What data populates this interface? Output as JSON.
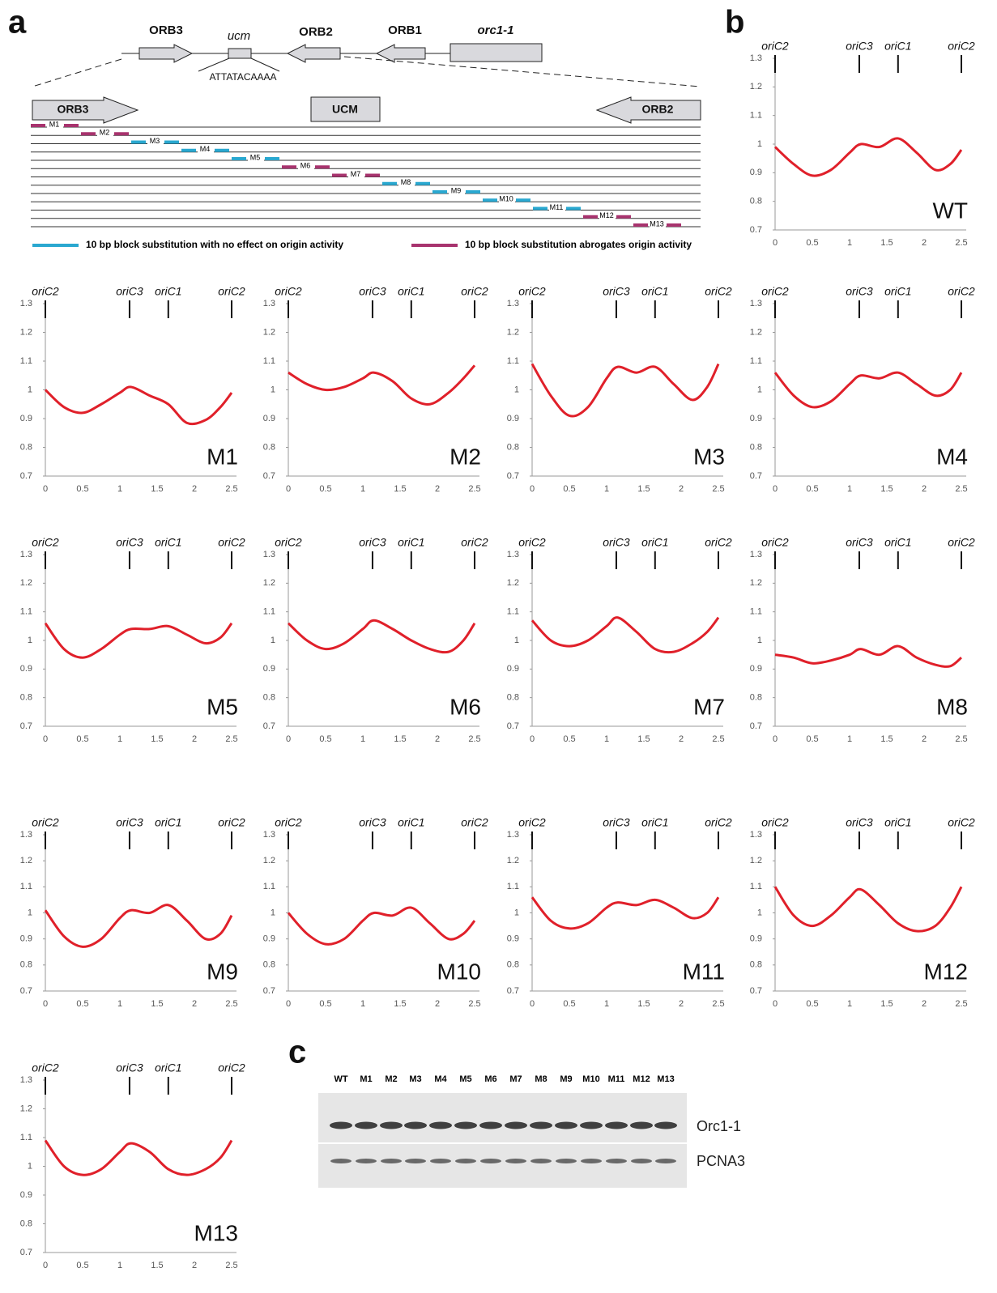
{
  "panel_labels": [
    "a",
    "b",
    "c"
  ],
  "diagram": {
    "genes": [
      "ORB3",
      "ucm",
      "ORB2",
      "ORB1",
      "orc1-1"
    ],
    "motif": "ATTATACAAAA",
    "zoom_labels": [
      "ORB3",
      "UCM",
      "ORB2"
    ],
    "blocks": [
      {
        "label": "M1",
        "color": "#a8336e"
      },
      {
        "label": "M2",
        "color": "#a8336e"
      },
      {
        "label": "M3",
        "color": "#2aa8d0"
      },
      {
        "label": "M4",
        "color": "#2aa8d0"
      },
      {
        "label": "M5",
        "color": "#2aa8d0"
      },
      {
        "label": "M6",
        "color": "#a8336e"
      },
      {
        "label": "M7",
        "color": "#a8336e"
      },
      {
        "label": "M8",
        "color": "#2aa8d0"
      },
      {
        "label": "M9",
        "color": "#2aa8d0"
      },
      {
        "label": "M10",
        "color": "#2aa8d0"
      },
      {
        "label": "M11",
        "color": "#2aa8d0"
      },
      {
        "label": "M12",
        "color": "#a8336e"
      },
      {
        "label": "M13",
        "color": "#a8336e"
      }
    ],
    "legend": [
      {
        "label": "10 bp block substitution with no effect on origin activity",
        "color": "#2aa8d0"
      },
      {
        "label": "10 bp block substitution abrogates origin activity",
        "color": "#a8336e"
      }
    ]
  },
  "chart_data": [
    {
      "type": "line",
      "title": "WT",
      "x": [
        0,
        0.25,
        0.5,
        0.75,
        1,
        1.15,
        1.4,
        1.65,
        1.9,
        2.15,
        2.35,
        2.5
      ],
      "series": [
        {
          "color": "#e0202a",
          "values": [
            0.99,
            0.93,
            0.89,
            0.91,
            0.97,
            1.0,
            0.99,
            1.02,
            0.97,
            0.91,
            0.93,
            0.98
          ]
        }
      ],
      "xlim": [
        0,
        2.5
      ],
      "ylim": [
        0.7,
        1.3
      ],
      "xticks": [
        0,
        0.5,
        1,
        1.5,
        2,
        2.5
      ],
      "yticks": [
        0.7,
        0.8,
        0.9,
        1,
        1.1,
        1.2,
        1.3
      ],
      "origins": [
        {
          "label": "oriC2",
          "value": 0
        },
        {
          "label": "oriC3",
          "value": 1.13
        },
        {
          "label": "oriC1",
          "value": 1.65
        },
        {
          "label": "oriC2",
          "value": 2.5
        }
      ]
    },
    {
      "type": "line",
      "title": "M1",
      "x": [
        0,
        0.25,
        0.5,
        0.75,
        1,
        1.15,
        1.4,
        1.65,
        1.9,
        2.15,
        2.35,
        2.5
      ],
      "series": [
        {
          "color": "#e0202a",
          "values": [
            1.0,
            0.94,
            0.92,
            0.95,
            0.99,
            1.01,
            0.98,
            0.95,
            0.885,
            0.895,
            0.94,
            0.99
          ]
        }
      ],
      "xlim": [
        0,
        2.5
      ],
      "ylim": [
        0.7,
        1.3
      ],
      "xticks": [
        0,
        0.5,
        1,
        1.5,
        2,
        2.5
      ],
      "yticks": [
        0.7,
        0.8,
        0.9,
        1,
        1.1,
        1.2,
        1.3
      ],
      "origins": [
        {
          "label": "oriC2",
          "value": 0
        },
        {
          "label": "oriC3",
          "value": 1.13
        },
        {
          "label": "oriC1",
          "value": 1.65
        },
        {
          "label": "oriC2",
          "value": 2.5
        }
      ]
    },
    {
      "type": "line",
      "title": "M2",
      "x": [
        0,
        0.25,
        0.5,
        0.75,
        1,
        1.15,
        1.4,
        1.65,
        1.9,
        2.15,
        2.35,
        2.5
      ],
      "series": [
        {
          "color": "#e0202a",
          "values": [
            1.06,
            1.02,
            1.0,
            1.01,
            1.04,
            1.06,
            1.03,
            0.97,
            0.95,
            0.99,
            1.04,
            1.085
          ]
        }
      ],
      "xlim": [
        0,
        2.5
      ],
      "ylim": [
        0.7,
        1.3
      ],
      "xticks": [
        0,
        0.5,
        1,
        1.5,
        2,
        2.5
      ],
      "yticks": [
        0.7,
        0.8,
        0.9,
        1,
        1.1,
        1.2,
        1.3
      ],
      "origins": [
        {
          "label": "oriC2",
          "value": 0
        },
        {
          "label": "oriC3",
          "value": 1.13
        },
        {
          "label": "oriC1",
          "value": 1.65
        },
        {
          "label": "oriC2",
          "value": 2.5
        }
      ]
    },
    {
      "type": "line",
      "title": "M3",
      "x": [
        0,
        0.25,
        0.5,
        0.75,
        1,
        1.15,
        1.4,
        1.65,
        1.9,
        2.15,
        2.35,
        2.5
      ],
      "series": [
        {
          "color": "#e0202a",
          "values": [
            1.09,
            0.98,
            0.91,
            0.94,
            1.04,
            1.08,
            1.06,
            1.08,
            1.02,
            0.965,
            1.01,
            1.09
          ]
        }
      ],
      "xlim": [
        0,
        2.5
      ],
      "ylim": [
        0.7,
        1.3
      ],
      "xticks": [
        0,
        0.5,
        1,
        1.5,
        2,
        2.5
      ],
      "yticks": [
        0.7,
        0.8,
        0.9,
        1,
        1.1,
        1.2,
        1.3
      ],
      "origins": [
        {
          "label": "oriC2",
          "value": 0
        },
        {
          "label": "oriC3",
          "value": 1.13
        },
        {
          "label": "oriC1",
          "value": 1.65
        },
        {
          "label": "oriC2",
          "value": 2.5
        }
      ]
    },
    {
      "type": "line",
      "title": "M4",
      "x": [
        0,
        0.25,
        0.5,
        0.75,
        1,
        1.15,
        1.4,
        1.65,
        1.9,
        2.15,
        2.35,
        2.5
      ],
      "series": [
        {
          "color": "#e0202a",
          "values": [
            1.06,
            0.98,
            0.94,
            0.96,
            1.02,
            1.05,
            1.04,
            1.06,
            1.02,
            0.98,
            1.0,
            1.06
          ]
        }
      ],
      "xlim": [
        0,
        2.5
      ],
      "ylim": [
        0.7,
        1.3
      ],
      "xticks": [
        0,
        0.5,
        1,
        1.5,
        2,
        2.5
      ],
      "yticks": [
        0.7,
        0.8,
        0.9,
        1,
        1.1,
        1.2,
        1.3
      ],
      "origins": [
        {
          "label": "oriC2",
          "value": 0
        },
        {
          "label": "oriC3",
          "value": 1.13
        },
        {
          "label": "oriC1",
          "value": 1.65
        },
        {
          "label": "oriC2",
          "value": 2.5
        }
      ]
    },
    {
      "type": "line",
      "title": "M5",
      "x": [
        0,
        0.25,
        0.5,
        0.75,
        1,
        1.15,
        1.4,
        1.65,
        1.9,
        2.15,
        2.35,
        2.5
      ],
      "series": [
        {
          "color": "#e0202a",
          "values": [
            1.06,
            0.97,
            0.94,
            0.97,
            1.02,
            1.04,
            1.04,
            1.05,
            1.02,
            0.99,
            1.01,
            1.06
          ]
        }
      ],
      "xlim": [
        0,
        2.5
      ],
      "ylim": [
        0.7,
        1.3
      ],
      "xticks": [
        0,
        0.5,
        1,
        1.5,
        2,
        2.5
      ],
      "yticks": [
        0.7,
        0.8,
        0.9,
        1,
        1.1,
        1.2,
        1.3
      ],
      "origins": [
        {
          "label": "oriC2",
          "value": 0
        },
        {
          "label": "oriC3",
          "value": 1.13
        },
        {
          "label": "oriC1",
          "value": 1.65
        },
        {
          "label": "oriC2",
          "value": 2.5
        }
      ]
    },
    {
      "type": "line",
      "title": "M6",
      "x": [
        0,
        0.25,
        0.5,
        0.75,
        1,
        1.15,
        1.4,
        1.65,
        1.9,
        2.15,
        2.35,
        2.5
      ],
      "series": [
        {
          "color": "#e0202a",
          "values": [
            1.06,
            1.0,
            0.97,
            0.99,
            1.04,
            1.07,
            1.04,
            1.0,
            0.97,
            0.96,
            1.0,
            1.06
          ]
        }
      ],
      "xlim": [
        0,
        2.5
      ],
      "ylim": [
        0.7,
        1.3
      ],
      "xticks": [
        0,
        0.5,
        1,
        1.5,
        2,
        2.5
      ],
      "yticks": [
        0.7,
        0.8,
        0.9,
        1,
        1.1,
        1.2,
        1.3
      ],
      "origins": [
        {
          "label": "oriC2",
          "value": 0
        },
        {
          "label": "oriC3",
          "value": 1.13
        },
        {
          "label": "oriC1",
          "value": 1.65
        },
        {
          "label": "oriC2",
          "value": 2.5
        }
      ]
    },
    {
      "type": "line",
      "title": "M7",
      "x": [
        0,
        0.25,
        0.5,
        0.75,
        1,
        1.15,
        1.4,
        1.65,
        1.9,
        2.15,
        2.35,
        2.5
      ],
      "series": [
        {
          "color": "#e0202a",
          "values": [
            1.07,
            1.0,
            0.98,
            1.0,
            1.05,
            1.08,
            1.03,
            0.97,
            0.96,
            0.99,
            1.03,
            1.08
          ]
        }
      ],
      "xlim": [
        0,
        2.5
      ],
      "ylim": [
        0.7,
        1.3
      ],
      "xticks": [
        0,
        0.5,
        1,
        1.5,
        2,
        2.5
      ],
      "yticks": [
        0.7,
        0.8,
        0.9,
        1,
        1.1,
        1.2,
        1.3
      ],
      "origins": [
        {
          "label": "oriC2",
          "value": 0
        },
        {
          "label": "oriC3",
          "value": 1.13
        },
        {
          "label": "oriC1",
          "value": 1.65
        },
        {
          "label": "oriC2",
          "value": 2.5
        }
      ]
    },
    {
      "type": "line",
      "title": "M8",
      "x": [
        0,
        0.25,
        0.5,
        0.75,
        1,
        1.15,
        1.4,
        1.65,
        1.9,
        2.15,
        2.35,
        2.5
      ],
      "series": [
        {
          "color": "#e0202a",
          "values": [
            0.95,
            0.94,
            0.92,
            0.93,
            0.95,
            0.97,
            0.95,
            0.98,
            0.94,
            0.915,
            0.91,
            0.94
          ]
        }
      ],
      "xlim": [
        0,
        2.5
      ],
      "ylim": [
        0.7,
        1.3
      ],
      "xticks": [
        0,
        0.5,
        1,
        1.5,
        2,
        2.5
      ],
      "yticks": [
        0.7,
        0.8,
        0.9,
        1,
        1.1,
        1.2,
        1.3
      ],
      "origins": [
        {
          "label": "oriC2",
          "value": 0
        },
        {
          "label": "oriC3",
          "value": 1.13
        },
        {
          "label": "oriC1",
          "value": 1.65
        },
        {
          "label": "oriC2",
          "value": 2.5
        }
      ]
    },
    {
      "type": "line",
      "title": "M9",
      "x": [
        0,
        0.25,
        0.5,
        0.75,
        1,
        1.15,
        1.4,
        1.65,
        1.9,
        2.15,
        2.35,
        2.5
      ],
      "series": [
        {
          "color": "#e0202a",
          "values": [
            1.01,
            0.91,
            0.87,
            0.9,
            0.98,
            1.01,
            1.0,
            1.03,
            0.97,
            0.9,
            0.92,
            0.99
          ]
        }
      ],
      "xlim": [
        0,
        2.5
      ],
      "ylim": [
        0.7,
        1.3
      ],
      "xticks": [
        0,
        0.5,
        1,
        1.5,
        2,
        2.5
      ],
      "yticks": [
        0.7,
        0.8,
        0.9,
        1,
        1.1,
        1.2,
        1.3
      ],
      "origins": [
        {
          "label": "oriC2",
          "value": 0
        },
        {
          "label": "oriC3",
          "value": 1.13
        },
        {
          "label": "oriC1",
          "value": 1.65
        },
        {
          "label": "oriC2",
          "value": 2.5
        }
      ]
    },
    {
      "type": "line",
      "title": "M10",
      "x": [
        0,
        0.25,
        0.5,
        0.75,
        1,
        1.15,
        1.4,
        1.65,
        1.9,
        2.15,
        2.35,
        2.5
      ],
      "series": [
        {
          "color": "#e0202a",
          "values": [
            1.0,
            0.92,
            0.88,
            0.9,
            0.97,
            1.0,
            0.99,
            1.02,
            0.96,
            0.9,
            0.92,
            0.97
          ]
        }
      ],
      "xlim": [
        0,
        2.5
      ],
      "ylim": [
        0.7,
        1.3
      ],
      "xticks": [
        0,
        0.5,
        1,
        1.5,
        2,
        2.5
      ],
      "yticks": [
        0.7,
        0.8,
        0.9,
        1,
        1.1,
        1.2,
        1.3
      ],
      "origins": [
        {
          "label": "oriC2",
          "value": 0
        },
        {
          "label": "oriC3",
          "value": 1.13
        },
        {
          "label": "oriC1",
          "value": 1.65
        },
        {
          "label": "oriC2",
          "value": 2.5
        }
      ]
    },
    {
      "type": "line",
      "title": "M11",
      "x": [
        0,
        0.25,
        0.5,
        0.75,
        1,
        1.15,
        1.4,
        1.65,
        1.9,
        2.15,
        2.35,
        2.5
      ],
      "series": [
        {
          "color": "#e0202a",
          "values": [
            1.06,
            0.97,
            0.94,
            0.96,
            1.02,
            1.04,
            1.03,
            1.05,
            1.02,
            0.98,
            1.0,
            1.06
          ]
        }
      ],
      "xlim": [
        0,
        2.5
      ],
      "ylim": [
        0.7,
        1.3
      ],
      "xticks": [
        0,
        0.5,
        1,
        1.5,
        2,
        2.5
      ],
      "yticks": [
        0.7,
        0.8,
        0.9,
        1,
        1.1,
        1.2,
        1.3
      ],
      "origins": [
        {
          "label": "oriC2",
          "value": 0
        },
        {
          "label": "oriC3",
          "value": 1.13
        },
        {
          "label": "oriC1",
          "value": 1.65
        },
        {
          "label": "oriC2",
          "value": 2.5
        }
      ]
    },
    {
      "type": "line",
      "title": "M12",
      "x": [
        0,
        0.25,
        0.5,
        0.75,
        1,
        1.15,
        1.4,
        1.65,
        1.9,
        2.15,
        2.35,
        2.5
      ],
      "series": [
        {
          "color": "#e0202a",
          "values": [
            1.1,
            0.99,
            0.95,
            0.99,
            1.06,
            1.09,
            1.03,
            0.96,
            0.93,
            0.95,
            1.02,
            1.1
          ]
        }
      ],
      "xlim": [
        0,
        2.5
      ],
      "ylim": [
        0.7,
        1.3
      ],
      "xticks": [
        0,
        0.5,
        1,
        1.5,
        2,
        2.5
      ],
      "yticks": [
        0.7,
        0.8,
        0.9,
        1,
        1.1,
        1.2,
        1.3
      ],
      "origins": [
        {
          "label": "oriC2",
          "value": 0
        },
        {
          "label": "oriC3",
          "value": 1.13
        },
        {
          "label": "oriC1",
          "value": 1.65
        },
        {
          "label": "oriC2",
          "value": 2.5
        }
      ]
    },
    {
      "type": "line",
      "title": "M13",
      "x": [
        0,
        0.25,
        0.5,
        0.75,
        1,
        1.15,
        1.4,
        1.65,
        1.9,
        2.15,
        2.35,
        2.5
      ],
      "series": [
        {
          "color": "#e0202a",
          "values": [
            1.09,
            1.0,
            0.97,
            0.99,
            1.05,
            1.08,
            1.05,
            0.99,
            0.97,
            0.99,
            1.03,
            1.09
          ]
        }
      ],
      "xlim": [
        0,
        2.5
      ],
      "ylim": [
        0.7,
        1.3
      ],
      "xticks": [
        0,
        0.5,
        1,
        1.5,
        2,
        2.5
      ],
      "yticks": [
        0.7,
        0.8,
        0.9,
        1,
        1.1,
        1.2,
        1.3
      ],
      "origins": [
        {
          "label": "oriC2",
          "value": 0
        },
        {
          "label": "oriC3",
          "value": 1.13
        },
        {
          "label": "oriC1",
          "value": 1.65
        },
        {
          "label": "oriC2",
          "value": 2.5
        }
      ]
    }
  ],
  "blot": {
    "lanes": [
      "WT",
      "M1",
      "M2",
      "M3",
      "M4",
      "M5",
      "M6",
      "M7",
      "M8",
      "M9",
      "M10",
      "M11",
      "M12",
      "M13"
    ],
    "bands": [
      "Orc1-1",
      "PCNA3"
    ]
  }
}
